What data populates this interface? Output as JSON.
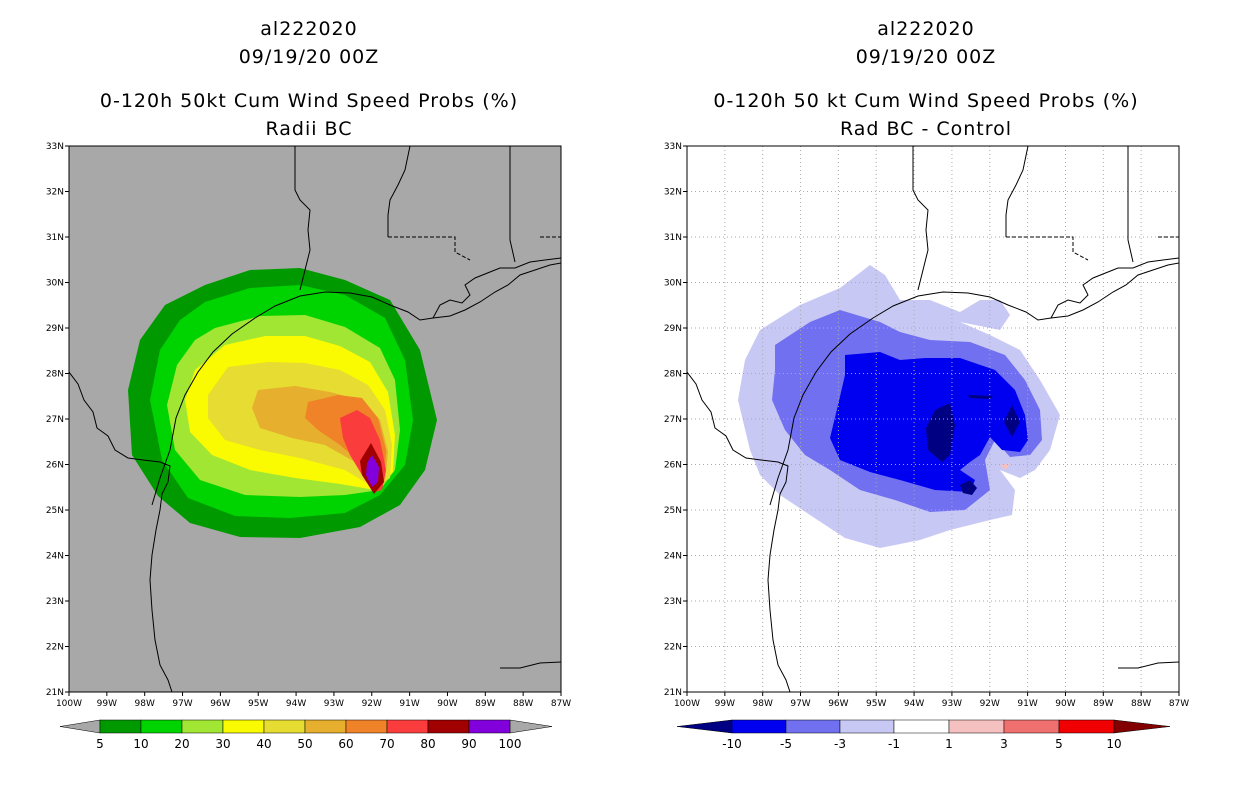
{
  "chart_data": [
    {
      "type": "contour-map",
      "storm_id": "al222020",
      "datetime": "09/19/20 00Z",
      "title": "0-120h 50kt Cum Wind Speed Probs (%)",
      "subtitle": "Radii BC",
      "background": "#a8a8a8",
      "lon_range": [
        -100,
        -87
      ],
      "lat_range": [
        21,
        33
      ],
      "x_tick_labels": [
        "100W",
        "99W",
        "98W",
        "97W",
        "96W",
        "95W",
        "94W",
        "93W",
        "92W",
        "91W",
        "90W",
        "89W",
        "88W",
        "87W"
      ],
      "y_tick_labels": [
        "21N",
        "22N",
        "23N",
        "24N",
        "25N",
        "26N",
        "27N",
        "28N",
        "29N",
        "30N",
        "31N",
        "32N",
        "33N"
      ],
      "grid": false,
      "levels": [
        5,
        10,
        20,
        30,
        40,
        50,
        60,
        70,
        80,
        90,
        100
      ],
      "level_labels": [
        "5",
        "10",
        "20",
        "30",
        "40",
        "50",
        "60",
        "70",
        "80",
        "90",
        "100"
      ],
      "colors": [
        "#009a00",
        "#00d400",
        "#a0e632",
        "#fafa00",
        "#e6dc32",
        "#e6af2d",
        "#f08228",
        "#fa3c3c",
        "#a00000",
        "#8200dc"
      ],
      "peak_probability_location": {
        "lon": -92.0,
        "lat": 26.0
      }
    },
    {
      "type": "contour-map",
      "storm_id": "al222020",
      "datetime": "09/19/20 00Z",
      "title": "0-120h 50 kt Cum Wind Speed Probs (%)",
      "subtitle": "Rad BC - Control",
      "background": "#ffffff",
      "lon_range": [
        -100,
        -87
      ],
      "lat_range": [
        21,
        33
      ],
      "x_tick_labels": [
        "100W",
        "99W",
        "98W",
        "97W",
        "96W",
        "95W",
        "94W",
        "93W",
        "92W",
        "91W",
        "90W",
        "89W",
        "88W",
        "87W"
      ],
      "y_tick_labels": [
        "21N",
        "22N",
        "23N",
        "24N",
        "25N",
        "26N",
        "27N",
        "28N",
        "29N",
        "30N",
        "31N",
        "32N",
        "33N"
      ],
      "grid": true,
      "levels": [
        -10,
        -5,
        -3,
        -1,
        1,
        3,
        5,
        10
      ],
      "level_labels": [
        "-10",
        "-5",
        "-3",
        "-1",
        "1",
        "3",
        "5",
        "10"
      ],
      "colors": [
        "#000082",
        "#0000f0",
        "#7070f0",
        "#c8c8f5",
        "#ffffff",
        "#f5c0c0",
        "#f07070",
        "#f00000",
        "#820000"
      ]
    }
  ]
}
